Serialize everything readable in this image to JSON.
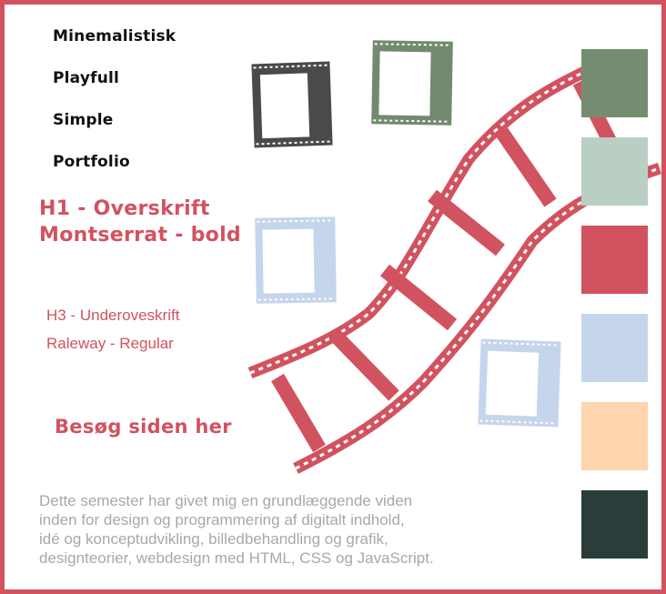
{
  "keywords": [
    "Minemalistisk",
    "Playfull",
    "Simple",
    "Portfolio"
  ],
  "heading1": {
    "line1": "H1 - Overskrift",
    "line2": "Montserrat - bold"
  },
  "heading3": {
    "line1": "H3 - Underoveskrift",
    "line2": "Raleway - Regular"
  },
  "cta_label": "Besøg siden her",
  "description_lines": [
    "Dette semester har givet mig en grundlæggende viden",
    "inden for design og programmering af digitalt indhold,",
    "idé og konceptudvikling, billedbehandling og grafik,",
    "designteorier, webdesign med HTML, CSS og JavaScript."
  ],
  "palette": [
    "#748d70",
    "#b9cfc4",
    "#d1535f",
    "#c5d5ec",
    "#fed5ae",
    "#2b3d3a"
  ],
  "accent_color": "#d1535f",
  "film_frame_colors": [
    "#4a4a4a",
    "#728a6e",
    "#c5d5ec",
    "#c5d5ec"
  ]
}
